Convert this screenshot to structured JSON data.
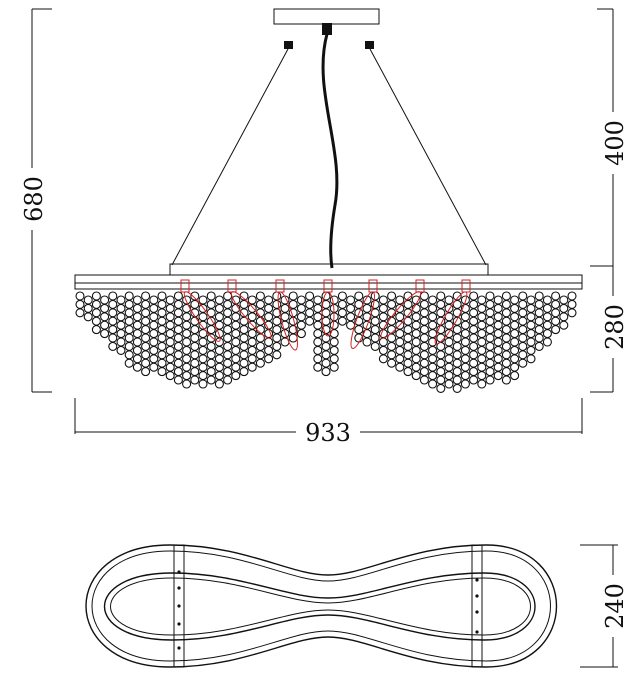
{
  "dimensions": {
    "total_height": "680",
    "cable_length": "400",
    "body_height": "280",
    "width": "933",
    "depth": "240"
  },
  "colors": {
    "line": "#111111",
    "light_source": "#d62020",
    "background": "#ffffff"
  },
  "views": {
    "front": "front-elevation",
    "top": "top-plan"
  }
}
